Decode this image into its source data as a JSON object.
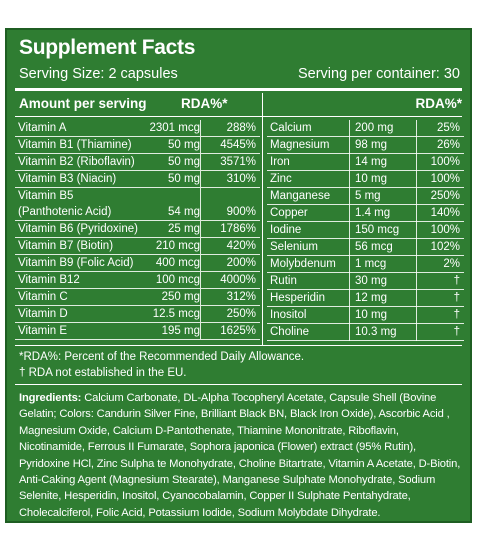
{
  "title": "Supplement Facts",
  "serving_size": "Serving Size: 2 capsules",
  "servings_per_container": "Serving per container: 30",
  "header": {
    "amount_per_serving": "Amount per serving",
    "rda_left": "RDA%*",
    "rda_right": "RDA%*"
  },
  "left_rows": [
    {
      "name": "Vitamin A",
      "amount": "2301 mcg",
      "rda": "288%"
    },
    {
      "name": "Vitamin B1 (Thiamine)",
      "amount": "50 mg",
      "rda": "4545%"
    },
    {
      "name": "Vitamin B2 (Riboflavin)",
      "amount": "50 mg",
      "rda": "3571%"
    },
    {
      "name": "Vitamin B3 (Niacin)",
      "amount": "50 mg",
      "rda": "310%"
    },
    {
      "name": "Vitamin B5",
      "name2": "(Panthotenic Acid)",
      "amount": "54 mg",
      "rda": "900%"
    },
    {
      "name": "Vitamin B6 (Pyridoxine)",
      "amount": "25 mg",
      "rda": "1786%"
    },
    {
      "name": "Vitamin B7 (Biotin)",
      "amount": "210 mcg",
      "rda": "420%"
    },
    {
      "name": "Vitamin B9 (Folic Acid)",
      "amount": "400 mcg",
      "rda": "200%"
    },
    {
      "name": "Vitamin B12",
      "amount": "100 mcg",
      "rda": "4000%"
    },
    {
      "name": "Vitamin C",
      "amount": "250 mg",
      "rda": "312%"
    },
    {
      "name": "Vitamin D",
      "amount": "12.5 mcg",
      "rda": "250%"
    },
    {
      "name": "Vitamin E",
      "amount": "195 mg",
      "rda": "1625%"
    }
  ],
  "right_rows": [
    {
      "name": "Calcium",
      "amount": "200 mg",
      "rda": "25%"
    },
    {
      "name": "Magnesium",
      "amount": "98 mg",
      "rda": "26%"
    },
    {
      "name": "Iron",
      "amount": "14 mg",
      "rda": "100%"
    },
    {
      "name": "Zinc",
      "amount": "10 mg",
      "rda": "100%"
    },
    {
      "name": "Manganese",
      "amount": "5 mg",
      "rda": "250%"
    },
    {
      "name": "Copper",
      "amount": "1.4 mg",
      "rda": "140%"
    },
    {
      "name": "Iodine",
      "amount": "150 mcg",
      "rda": "100%"
    },
    {
      "name": "Selenium",
      "amount": "56 mcg",
      "rda": "102%"
    },
    {
      "name": "Molybdenum",
      "amount": "1 mcg",
      "rda": "2%"
    },
    {
      "name": "Rutin",
      "amount": "30 mg",
      "rda": "†"
    },
    {
      "name": "Hesperidin",
      "amount": "12 mg",
      "rda": "†"
    },
    {
      "name": "Inositol",
      "amount": "10 mg",
      "rda": "†"
    },
    {
      "name": "Choline",
      "amount": "10.3 mg",
      "rda": "†"
    }
  ],
  "footnotes": {
    "rda": "*RDA%: Percent of the Recommended Daily Allowance.",
    "dagger": "† RDA not established in the EU."
  },
  "ingredients": {
    "label": "Ingredients:",
    "text": " Calcium Carbonate, DL-Alpha Tocopheryl Acetate, Capsule Shell (Bovine Gelatin; Colors: Candurin Silver Fine, Brilliant Black BN, Black Iron Oxide), Ascorbic Acid , Magnesium Oxide, Calcium D-Pantothenate, Thiamine Mononitrate, Riboflavin, Nicotinamide, Ferrous II Fumarate, Sophora japonica (Flower) extract (95% Rutin), Pyridoxine HCl, Zinc Sulpha te Monohydrate, Choline Bitartrate, Vitamin A Acetate, D-Biotin, Anti-Caking Agent (Magnesium Stearate), Manganese Sulphate Monohydrate, Sodium Selenite, Hesperidin, Inositol, Cyanocobalamin, Copper II Sulphate Pentahydrate, Cholecalciferol, Folic Acid, Potassium Iodide, Sodium Molybdate Dihydrate."
  }
}
